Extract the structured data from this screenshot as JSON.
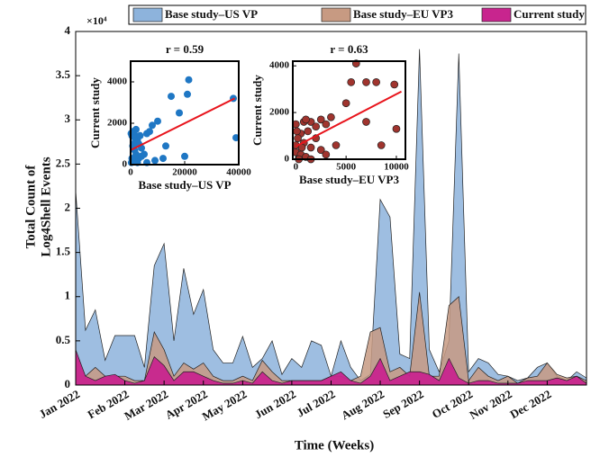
{
  "chart_data": [
    {
      "type": "area",
      "y_label": [
        "Total Count of",
        "Log4Shell Events"
      ],
      "x_label": "Time (Weeks)",
      "y_multiplier": "×10⁴",
      "ylim": [
        0,
        4
      ],
      "yticks": [
        0,
        0.5,
        1,
        1.5,
        2,
        2.5,
        3,
        3.5,
        4
      ],
      "legend": "top",
      "categories": [
        "Jan 2022",
        null,
        null,
        null,
        null,
        "Feb 2022",
        null,
        null,
        null,
        "Mar 2022",
        null,
        null,
        null,
        "Apr 2022",
        null,
        null,
        null,
        "May 2022",
        null,
        null,
        null,
        null,
        "Jun 2022",
        null,
        null,
        null,
        "Jul 2022",
        null,
        null,
        null,
        null,
        "Aug 2022",
        null,
        null,
        null,
        "Sep 2022",
        null,
        null,
        null,
        null,
        "Oct 2022",
        null,
        null,
        null,
        "Nov 2022",
        null,
        null,
        null,
        "Dec 2022",
        null,
        null,
        null,
        null
      ],
      "series": [
        {
          "name": "Base study–US VP",
          "color": "#8db3dc",
          "values": [
            2.2,
            0.62,
            0.85,
            0.28,
            0.56,
            0.56,
            0.56,
            0.2,
            1.35,
            1.6,
            0.5,
            1.32,
            0.8,
            1.08,
            0.4,
            0.25,
            0.25,
            0.55,
            0.2,
            0.3,
            0.5,
            0.12,
            0.3,
            0.2,
            0.5,
            0.45,
            0.1,
            0.5,
            0.2,
            0.05,
            0.12,
            2.1,
            1.9,
            0.35,
            0.3,
            3.8,
            0.4,
            0.15,
            0.5,
            3.75,
            0.15,
            0.3,
            0.25,
            0.12,
            0.1,
            0.05,
            0.08,
            0.2,
            0.25,
            0.1,
            0.05,
            0.15,
            0.08
          ]
        },
        {
          "name": "Base study–EU VP3",
          "color": "#c79a82",
          "values": [
            0.35,
            0.1,
            0.2,
            0.1,
            0.1,
            0.1,
            0.05,
            0.05,
            0.6,
            0.4,
            0.1,
            0.25,
            0.18,
            0.25,
            0.1,
            0.05,
            0.05,
            0.1,
            0.05,
            0.28,
            0.15,
            0.05,
            0.05,
            0.05,
            0.05,
            0.05,
            0.1,
            0.1,
            0.05,
            0.1,
            0.6,
            0.65,
            0.15,
            0.2,
            0.1,
            1.05,
            0.1,
            0.1,
            0.9,
            1.0,
            0.05,
            0.2,
            0.1,
            0.05,
            0.1,
            0.02,
            0.08,
            0.1,
            0.25,
            0.12,
            0.08,
            0.1,
            0.05
          ]
        },
        {
          "name": "Current study",
          "color": "#c8258e",
          "values": [
            0.4,
            0.1,
            0.05,
            0.1,
            0.12,
            0.05,
            0.02,
            0.05,
            0.32,
            0.22,
            0.05,
            0.15,
            0.15,
            0.1,
            0.05,
            0.02,
            0.02,
            0.05,
            0.02,
            0.15,
            0.05,
            0.02,
            0.05,
            0.05,
            0.05,
            0.05,
            0.1,
            0.15,
            0.05,
            0.02,
            0.1,
            0.3,
            0.05,
            0.1,
            0.15,
            0.15,
            0.12,
            0.05,
            0.3,
            0.08,
            0.02,
            0.05,
            0.05,
            0.02,
            0.02,
            0.02,
            0.05,
            0.05,
            0.05,
            0.08,
            0.05,
            0.1,
            0.02
          ]
        }
      ]
    },
    {
      "type": "scatter",
      "title": "r = 0.59",
      "x_label": "Base study–US VP",
      "y_label": "Current study",
      "color": "#1f77c4",
      "xlim": [
        0,
        40000
      ],
      "xticks": [
        0,
        20000,
        40000
      ],
      "ylim": [
        0,
        5000
      ],
      "yticks": [
        0,
        2000,
        4000
      ],
      "x": [
        200,
        500,
        800,
        1200,
        1500,
        2000,
        2500,
        3000,
        800,
        1500,
        2000,
        500,
        1000,
        3000,
        4000,
        5000,
        6000,
        7000,
        8000,
        10000,
        12000,
        15000,
        18000,
        21000,
        21500,
        20000,
        38000,
        39000,
        300,
        2500,
        6000,
        9000,
        4000,
        3500,
        13000,
        1000
      ],
      "y": [
        1500,
        1400,
        1600,
        1500,
        1300,
        1700,
        1200,
        1000,
        900,
        700,
        500,
        300,
        200,
        300,
        400,
        500,
        1500,
        1600,
        1900,
        2100,
        300,
        3300,
        2500,
        3400,
        4100,
        400,
        3200,
        1300,
        100,
        100,
        100,
        200,
        800,
        1400,
        900,
        1000
      ],
      "fit": {
        "color": "#e8141c",
        "x": [
          0,
          38500
        ],
        "y": [
          700,
          3200
        ]
      }
    },
    {
      "type": "scatter",
      "title": "r = 0.63",
      "x_label": "Base study–EU VP3",
      "y_label": "Current study",
      "color": "#a0342e",
      "xlim": [
        -300,
        10900
      ],
      "xticks": [
        0,
        5000,
        10000
      ],
      "ylim": [
        0,
        4200
      ],
      "yticks": [
        0,
        2000,
        4000
      ],
      "x": [
        6000,
        7000,
        5500,
        8000,
        9800,
        5000,
        10000,
        3500,
        2500,
        1500,
        800,
        0,
        2000,
        3000,
        1200,
        500,
        200,
        800,
        1500,
        2500,
        0,
        500,
        1000,
        1500,
        300,
        0,
        4000,
        8500,
        7000,
        2000,
        1000,
        100,
        3000,
        600
      ],
      "y": [
        4100,
        3300,
        3300,
        3300,
        3200,
        2400,
        1300,
        1800,
        1700,
        1600,
        1600,
        1500,
        1400,
        1500,
        1200,
        1100,
        900,
        700,
        500,
        400,
        300,
        200,
        100,
        0,
        0,
        600,
        600,
        600,
        1600,
        900,
        1700,
        1200,
        200,
        500
      ],
      "fit": {
        "color": "#e8141c",
        "x": [
          0,
          10500
        ],
        "y": [
          550,
          2900
        ]
      }
    }
  ]
}
